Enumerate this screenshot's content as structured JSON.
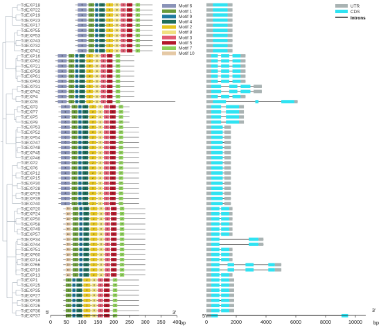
{
  "colors": {
    "Motif 6": "#8a93b8",
    "Motif 1": "#6a9a3a",
    "Motif 9": "#1f7aa0",
    "Motif 4": "#1f6d5a",
    "Motif 2": "#e5c51f",
    "Motif 8": "#f0e080",
    "Motif 3": "#e05a70",
    "Motif 5": "#b3182b",
    "Motif 7": "#8ecf5a",
    "Motif 10": "#e5c9a5",
    "UTR": "#a9b3b3",
    "CDS": "#2fe3f2",
    "Introns": "#000000",
    "tree": "#9aa6b2"
  },
  "genes": [
    {
      "name": "TdEXP18",
      "color": "#ff2aa8"
    },
    {
      "name": "TdEXP22",
      "color": "#2a7fd4"
    },
    {
      "name": "TdEXP19",
      "color": "#2a7fd4"
    },
    {
      "name": "TdEXP23",
      "color": "#2a7fd4"
    },
    {
      "name": "TdEXP17",
      "color": "#2a7fd4"
    },
    {
      "name": "TdEXP55",
      "color": "#ff2aa8"
    },
    {
      "name": "TdEXP53",
      "color": "#ff2aa8"
    },
    {
      "name": "TdEXP43",
      "color": "#ff2aa8"
    },
    {
      "name": "TdEXP32",
      "color": "#2a7fd4"
    },
    {
      "name": "TdEXP41",
      "color": "#2a7fd4"
    },
    {
      "name": "TdEXP16",
      "color": "#2a7fd4"
    },
    {
      "name": "TdEXP62",
      "color": "#2a7fd4"
    },
    {
      "name": "TdEXP21",
      "color": "#2a7fd4"
    },
    {
      "name": "TdEXP59",
      "color": "#2a7fd4"
    },
    {
      "name": "TdEXP61",
      "color": "#2a7fd4"
    },
    {
      "name": "TdEXP63",
      "color": "#2a7fd4"
    },
    {
      "name": "TdEXP31",
      "color": "#2a7fd4"
    },
    {
      "name": "TdEXP42",
      "color": "#2a7fd4"
    },
    {
      "name": "TdEXP4",
      "color": "#2a7fd4"
    },
    {
      "name": "TdEXP8",
      "color": "#2a7fd4"
    },
    {
      "name": "TdEXP3",
      "color": "#ff2aa8"
    },
    {
      "name": "TdEXP7",
      "color": "#ff2aa8"
    },
    {
      "name": "TdEXP5",
      "color": "#ff2aa8"
    },
    {
      "name": "TdEXP9",
      "color": "#ff2aa8"
    },
    {
      "name": "TdEXP53",
      "color": "#ff2aa8"
    },
    {
      "name": "TdEXP52",
      "color": "#2a7fd4"
    },
    {
      "name": "TdEXP54",
      "color": "#2a7fd4"
    },
    {
      "name": "TdEXP47",
      "color": "#2a7fd4"
    },
    {
      "name": "TdEXP48",
      "color": "#2a7fd4"
    },
    {
      "name": "TdEXP45",
      "color": "#ff2aa8"
    },
    {
      "name": "TdEXP46",
      "color": "#2a7fd4"
    },
    {
      "name": "TdEXP2",
      "color": "#ff2aa8"
    },
    {
      "name": "TdEXP6",
      "color": "#2a7fd4"
    },
    {
      "name": "TdEXP12",
      "color": "#2a7fd4"
    },
    {
      "name": "TdEXP15",
      "color": "#2a7fd4"
    },
    {
      "name": "TdEXP30",
      "color": "#2a7fd4"
    },
    {
      "name": "TdEXP28",
      "color": "#2a7fd4"
    },
    {
      "name": "TdEXP29",
      "color": "#2a7fd4"
    },
    {
      "name": "TdEXP39",
      "color": "#2a7fd4"
    },
    {
      "name": "TdEXP40",
      "color": "#2a7fd4"
    },
    {
      "name": "TdEXP20",
      "color": "#2a7fd4"
    },
    {
      "name": "TdEXP24",
      "color": "#2a7fd4"
    },
    {
      "name": "TdEXP50",
      "color": "#2a7fd4"
    },
    {
      "name": "TdEXP58",
      "color": "#2a7fd4"
    },
    {
      "name": "TdEXP49",
      "color": "#2a7fd4"
    },
    {
      "name": "TdEXP57",
      "color": "#2a7fd4"
    },
    {
      "name": "TdEXP34",
      "color": "#2a7fd4"
    },
    {
      "name": "TdEXP44",
      "color": "#2a7fd4"
    },
    {
      "name": "TdEXP51",
      "color": "#2a7fd4"
    },
    {
      "name": "TdEXP60",
      "color": "#2a7fd4"
    },
    {
      "name": "TdEXP14",
      "color": "#2a7fd4"
    },
    {
      "name": "TdEXP66",
      "color": "#2a7fd4"
    },
    {
      "name": "TdEXP10",
      "color": "#2a7fd4"
    },
    {
      "name": "TdEXP13",
      "color": "#2a7fd4"
    },
    {
      "name": "TdEXP1",
      "color": "#2a7fd4"
    },
    {
      "name": "TdEXP25",
      "color": "#2a7fd4"
    },
    {
      "name": "TdEXP35",
      "color": "#2a7fd4"
    },
    {
      "name": "TdEXP27",
      "color": "#2a7fd4"
    },
    {
      "name": "TdEXP38",
      "color": "#2a7fd4"
    },
    {
      "name": "TdEXP26",
      "color": "#2a7fd4"
    },
    {
      "name": "TdEXP36",
      "color": "#2a7fd4"
    },
    {
      "name": "TdEXP37",
      "color": "#2a7fd4"
    }
  ],
  "motif_panel": {
    "end_label_5": "5'",
    "end_label_3": "3'",
    "axis_unit": "bp",
    "ticks": [
      "0",
      "50",
      "100",
      "150",
      "200",
      "250",
      "300",
      "350",
      "400"
    ],
    "legend": [
      {
        "label": "Motif 6",
        "motif": "6"
      },
      {
        "label": "Motif 1",
        "motif": "1"
      },
      {
        "label": "Motif 9",
        "motif": "9"
      },
      {
        "label": "Motif 4",
        "motif": "4"
      },
      {
        "label": "Motif 2",
        "motif": "2"
      },
      {
        "label": "Motif 8",
        "motif": "8"
      },
      {
        "label": "Motif 3",
        "motif": "3"
      },
      {
        "label": "Motif 5",
        "motif": "5"
      },
      {
        "label": "Motif 7",
        "motif": "7"
      },
      {
        "label": "Motif 10",
        "motif": "10"
      }
    ]
  },
  "structure_panel": {
    "end_label_5": "5'",
    "end_label_3": "3'",
    "axis_unit": "bp",
    "ticks": [
      "0",
      "2000",
      "4000",
      "6000",
      "8000",
      "10000"
    ],
    "legend": {
      "utr": "UTR",
      "cds": "CDS",
      "introns": "Introns"
    }
  }
}
